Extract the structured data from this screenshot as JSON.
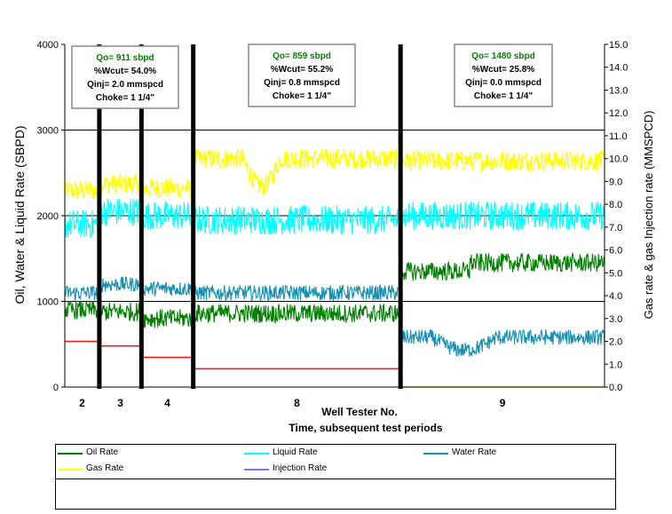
{
  "chart_data": {
    "type": "line",
    "ylabel_left": "Oil, Water & Liquid  Rate (SBPD)",
    "ylabel_right": "Gas rate & gas Injection rate (MMSPCD)",
    "xlabel_line1": "Well Tester No.",
    "xlabel_line2": "Time, subsequent test periods",
    "ylim_left": [
      0,
      4000
    ],
    "yticks_left": [
      "0",
      "1000",
      "2000",
      "3000",
      "4000"
    ],
    "ylim_right": [
      0,
      15
    ],
    "yticks_right": [
      "0.0",
      "1.0",
      "2.0",
      "3.0",
      "4.0",
      "5.0",
      "6.0",
      "7.0",
      "8.0",
      "9.0",
      "10.0",
      "11.0",
      "12.0",
      "13.0",
      "14.0",
      "15.0"
    ],
    "test_periods": [
      {
        "label": "2",
        "start": 0,
        "end": 0.064
      },
      {
        "label": "3",
        "start": 0.064,
        "end": 0.142
      },
      {
        "label": "4",
        "start": 0.142,
        "end": 0.238
      },
      {
        "label": "8",
        "start": 0.238,
        "end": 0.622
      },
      {
        "label": "9",
        "start": 0.622,
        "end": 1.0
      }
    ],
    "series": [
      {
        "name": "Oil Rate",
        "color": "#008000",
        "axis": "left",
        "segments": [
          [
            0,
            0.064,
            900
          ],
          [
            0.064,
            0.142,
            880
          ],
          [
            0.142,
            0.238,
            800
          ],
          [
            0.238,
            0.622,
            860
          ],
          [
            0.622,
            0.75,
            1350
          ],
          [
            0.75,
            1.0,
            1450
          ]
        ]
      },
      {
        "name": "Liquid Rate",
        "color": "#00FFFF",
        "axis": "left",
        "segments": [
          [
            0,
            0.064,
            1900
          ],
          [
            0.064,
            0.142,
            2050
          ],
          [
            0.142,
            0.238,
            2000
          ],
          [
            0.238,
            0.622,
            1950
          ],
          [
            0.622,
            1.0,
            2000
          ]
        ]
      },
      {
        "name": "Water Rate",
        "color": "#1A90B0",
        "axis": "left",
        "segments": [
          [
            0,
            0.064,
            1100
          ],
          [
            0.064,
            0.142,
            1200
          ],
          [
            0.142,
            0.238,
            1150
          ],
          [
            0.238,
            0.622,
            1100
          ],
          [
            0.622,
            1.0,
            580
          ]
        ]
      },
      {
        "name": "Gas Rate",
        "color": "#FFFF00",
        "axis": "right",
        "segments": [
          [
            0,
            0.064,
            8.6
          ],
          [
            0.064,
            0.142,
            8.9
          ],
          [
            0.142,
            0.238,
            8.7
          ],
          [
            0.238,
            0.622,
            10.0
          ],
          [
            0.622,
            1.0,
            9.9
          ]
        ]
      },
      {
        "name": "Injection Rate",
        "color": "#9370DB",
        "axis": "right",
        "segments": [
          [
            0,
            0.064,
            2.0
          ],
          [
            0.064,
            0.142,
            1.8
          ],
          [
            0.142,
            0.238,
            1.3
          ],
          [
            0.238,
            0.622,
            0.8
          ],
          [
            0.622,
            1.0,
            0.0
          ]
        ]
      }
    ],
    "annotations": [
      {
        "id": "box1",
        "qo": "Qo= 911 sbpd",
        "wcut": "%Wcut= 54.0%",
        "qinj": "Qinj= 2.0 mmspcd",
        "choke": "Choke= 1 1/4\""
      },
      {
        "id": "box2",
        "qo": "Qo= 859 sbpd",
        "wcut": "%Wcut= 55.2%",
        "qinj": "Qinj= 0.8 mmspcd",
        "choke": "Choke= 1 1/4\""
      },
      {
        "id": "box3",
        "qo": "Qo= 1480 sbpd",
        "wcut": "%Wcut= 25.8%",
        "qinj": "Qinj= 0.0 mmspcd",
        "choke": "Choke= 1 1/4\""
      }
    ],
    "legend": {
      "row1": [
        {
          "label": "Oil Rate",
          "color": "#008000"
        },
        {
          "label": "Liquid Rate",
          "color": "#00FFFF"
        },
        {
          "label": "Water Rate",
          "color": "#1A90B0"
        }
      ],
      "row2": [
        {
          "label": "Gas Rate",
          "color": "#FFFF00"
        },
        {
          "label": "Injection Rate",
          "color": "#9370DB"
        }
      ]
    }
  }
}
